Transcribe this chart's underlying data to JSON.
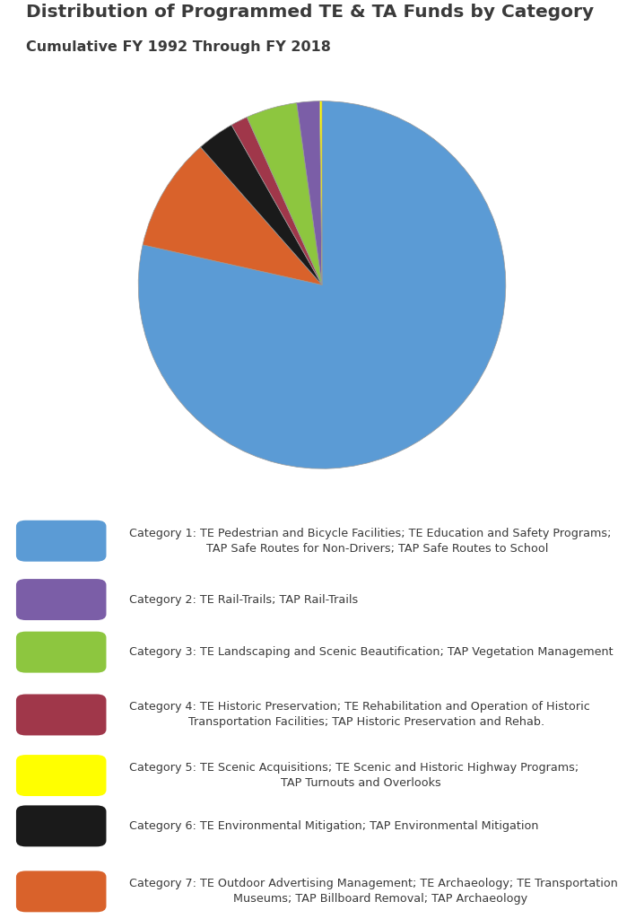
{
  "title": "Distribution of Programmed TE & TA Funds by Category",
  "subtitle": "Cumulative FY 1992 Through FY 2018",
  "title_fontsize": 14.5,
  "subtitle_fontsize": 11.5,
  "background_color": "#ffffff",
  "pie_values": [
    78.5,
    2.0,
    4.5,
    1.5,
    0.2,
    3.3,
    10.0
  ],
  "pie_colors": [
    "#5B9BD5",
    "#7B5EA7",
    "#8DC63F",
    "#A0374A",
    "#FFFF00",
    "#1A1A1A",
    "#D9622B"
  ],
  "legend_labels": [
    "Category 1: TE Pedestrian and Bicycle Facilities; TE Education and Safety Programs;\n    TAP Safe Routes for Non-Drivers; TAP Safe Routes to School",
    "Category 2: TE Rail-Trails; TAP Rail-Trails",
    "Category 3: TE Landscaping and Scenic Beautification; TAP Vegetation Management",
    "Category 4: TE Historic Preservation; TE Rehabilitation and Operation of Historic\n    Transportation Facilities; TAP Historic Preservation and Rehab.",
    "Category 5: TE Scenic Acquisitions; TE Scenic and Historic Highway Programs;\n    TAP Turnouts and Overlooks",
    "Category 6: TE Environmental Mitigation; TAP Environmental Mitigation",
    "Category 7: TE Outdoor Advertising Management; TE Archaeology; TE Transportation\n    Museums; TAP Billboard Removal; TAP Archaeology"
  ],
  "pie_order": [
    0,
    6,
    5,
    3,
    2,
    1,
    4
  ],
  "start_angle": 90,
  "text_color": "#3A3A3A"
}
